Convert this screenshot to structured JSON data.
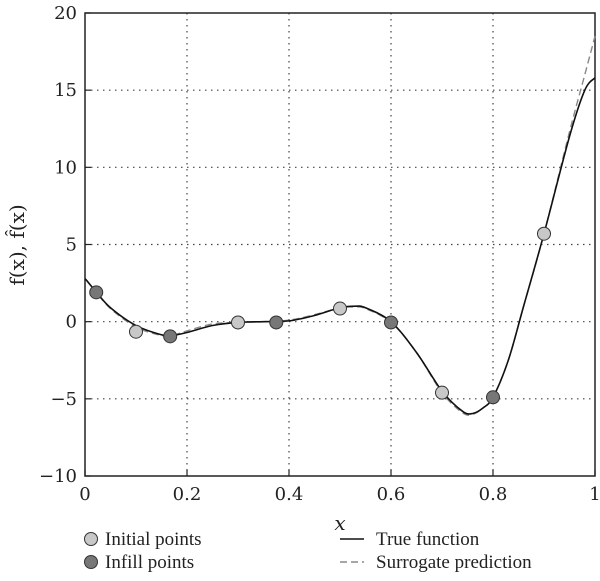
{
  "chart_data": {
    "type": "line",
    "xlabel": "x",
    "ylabel": "f(x), f̂(x)",
    "xlim": [
      0,
      1
    ],
    "ylim": [
      -10,
      20
    ],
    "x_ticks": [
      0,
      0.2,
      0.4,
      0.6,
      0.8,
      1
    ],
    "x_tick_labels": [
      "0",
      "0.2",
      "0.4",
      "0.6",
      "0.8",
      "1"
    ],
    "y_ticks": [
      -10,
      -5,
      0,
      5,
      10,
      15,
      20
    ],
    "y_tick_labels": [
      "−10",
      "−5",
      "0",
      "5",
      "10",
      "15",
      "20"
    ],
    "grid": true,
    "legend_position": "bottom",
    "series": [
      {
        "name": "True function",
        "kind": "line",
        "style": "solid",
        "color": "#111111",
        "points": [
          [
            0,
            2.8
          ],
          [
            0.02,
            2.0
          ],
          [
            0.05,
            0.9
          ],
          [
            0.1,
            -0.25
          ],
          [
            0.15,
            -0.85
          ],
          [
            0.17,
            -0.9
          ],
          [
            0.2,
            -0.7
          ],
          [
            0.25,
            -0.25
          ],
          [
            0.3,
            -0.05
          ],
          [
            0.35,
            0.0
          ],
          [
            0.4,
            0.05
          ],
          [
            0.45,
            0.4
          ],
          [
            0.5,
            0.9
          ],
          [
            0.53,
            1.0
          ],
          [
            0.55,
            0.9
          ],
          [
            0.6,
            0.0
          ],
          [
            0.65,
            -2.0
          ],
          [
            0.7,
            -4.5
          ],
          [
            0.74,
            -5.8
          ],
          [
            0.76,
            -5.95
          ],
          [
            0.78,
            -5.6
          ],
          [
            0.8,
            -4.9
          ],
          [
            0.83,
            -2.5
          ],
          [
            0.86,
            1.0
          ],
          [
            0.9,
            5.7
          ],
          [
            0.95,
            12.0
          ],
          [
            0.98,
            15.0
          ],
          [
            1.0,
            15.8
          ]
        ]
      },
      {
        "name": "Surrogate prediction",
        "kind": "line",
        "style": "dashed",
        "color": "#888888",
        "points": [
          [
            0,
            2.8
          ],
          [
            0.02,
            2.0
          ],
          [
            0.05,
            0.85
          ],
          [
            0.1,
            -0.35
          ],
          [
            0.15,
            -0.9
          ],
          [
            0.17,
            -0.9
          ],
          [
            0.2,
            -0.6
          ],
          [
            0.25,
            -0.15
          ],
          [
            0.3,
            -0.05
          ],
          [
            0.35,
            0.0
          ],
          [
            0.4,
            0.1
          ],
          [
            0.45,
            0.45
          ],
          [
            0.5,
            0.9
          ],
          [
            0.53,
            0.95
          ],
          [
            0.55,
            0.85
          ],
          [
            0.6,
            -0.05
          ],
          [
            0.65,
            -2.0
          ],
          [
            0.7,
            -4.6
          ],
          [
            0.74,
            -5.9
          ],
          [
            0.76,
            -6.0
          ],
          [
            0.78,
            -5.6
          ],
          [
            0.8,
            -4.9
          ],
          [
            0.83,
            -2.5
          ],
          [
            0.86,
            1.0
          ],
          [
            0.9,
            5.7
          ],
          [
            0.95,
            12.3
          ],
          [
            0.98,
            16.0
          ],
          [
            1.0,
            18.5
          ]
        ]
      },
      {
        "name": "Initial points",
        "kind": "markers",
        "color": "#c8c8c8",
        "points": [
          [
            0.1,
            -0.65
          ],
          [
            0.3,
            -0.05
          ],
          [
            0.5,
            0.85
          ],
          [
            0.7,
            -4.6
          ],
          [
            0.9,
            5.7
          ]
        ]
      },
      {
        "name": "Infill points",
        "kind": "markers",
        "color": "#777777",
        "points": [
          [
            0.022,
            1.9
          ],
          [
            0.167,
            -0.95
          ],
          [
            0.375,
            -0.05
          ],
          [
            0.6,
            -0.05
          ],
          [
            0.8,
            -4.9
          ]
        ]
      }
    ],
    "legend": [
      {
        "label": "Initial points",
        "kind": "marker",
        "color": "#c8c8c8"
      },
      {
        "label": "Infill points",
        "kind": "marker",
        "color": "#777777"
      },
      {
        "label": "True function",
        "kind": "line",
        "style": "solid"
      },
      {
        "label": "Surrogate prediction",
        "kind": "line",
        "style": "dashed"
      }
    ]
  }
}
